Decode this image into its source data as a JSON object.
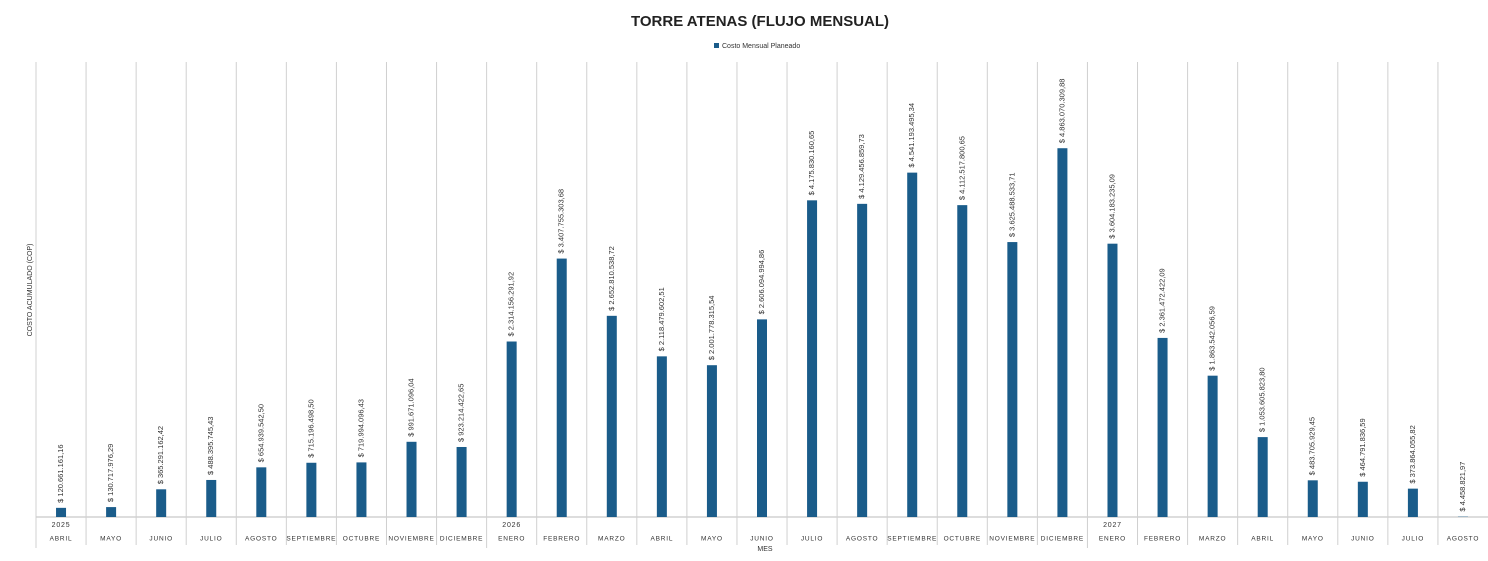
{
  "chart_data": {
    "type": "bar",
    "title": "TORRE ATENAS (FLUJO MENSUAL)",
    "x_label": "MES",
    "y_label": "COSTO ACUMULADO (COP)",
    "categories": [
      "ABRIL",
      "MAYO",
      "JUNIO",
      "JULIO",
      "AGOSTO",
      "SEPTIEMBRE",
      "OCTUBRE",
      "NOVIEMBRE",
      "DICIEMBRE",
      "ENERO",
      "FEBRERO",
      "MARZO",
      "ABRIL",
      "MAYO",
      "JUNIO",
      "JULIO",
      "AGOSTO",
      "SEPTIEMBRE",
      "OCTUBRE",
      "NOVIEMBRE",
      "DICIEMBRE",
      "ENERO",
      "FEBRERO",
      "MARZO",
      "ABRIL",
      "MAYO",
      "JUNIO",
      "JULIO",
      "AGOSTO"
    ],
    "years": [
      "2025",
      null,
      null,
      null,
      null,
      null,
      null,
      null,
      null,
      "2026",
      null,
      null,
      null,
      null,
      null,
      null,
      null,
      null,
      null,
      null,
      null,
      "2027",
      null,
      null,
      null,
      null,
      null,
      null,
      null
    ],
    "series": [
      {
        "name": "Costo Mensual Planeado",
        "color": "#1a5c8a",
        "values": [
          120661161.16,
          130717976.29,
          365291162.42,
          488395745.43,
          654939542.5,
          715196498.5,
          719994096.43,
          991671096.04,
          923214422.65,
          2314156291.92,
          3407755303.68,
          2652810538.72,
          2118479602.51,
          2001778315.54,
          2606094994.86,
          4175830160.65,
          4129456859.73,
          4541193495.34,
          4112517800.65,
          3625488533.71,
          4863070309.88,
          3604183235.09,
          2361472422.09,
          1863542056.59,
          1053605823.8,
          483705929.45,
          464791836.59,
          373864055.82,
          4458821.97
        ],
        "value_labels": [
          "$ 120.661.161,16",
          "$ 130.717.976,29",
          "$ 365.291.162,42",
          "$ 488.395.745,43",
          "$ 654.939.542,50",
          "$ 715.196.498,50",
          "$ 719.994.096,43",
          "$ 991.671.096,04",
          "$ 923.214.422,65",
          "$ 2.314.156.291,92",
          "$ 3.407.755.303,68",
          "$ 2.652.810.538,72",
          "$ 2.118.479.602,51",
          "$ 2.001.778.315,54",
          "$ 2.606.094.994,86",
          "$ 4.175.830.160,65",
          "$ 4.129.456.859,73",
          "$ 4.541.193.495,34",
          "$ 4.112.517.800,65",
          "$ 3.625.488.533,71",
          "$ 4.863.070.309,88",
          "$ 3.604.183.235,09",
          "$ 2.361.472.422,09",
          "$ 1.863.542.056,59",
          "$ 1.053.605.823,80",
          "$ 483.705.929,45",
          "$ 464.791.836,59",
          "$ 373.864.055,82",
          "$ 4.458.821,97"
        ]
      }
    ],
    "ylim": [
      0,
      6000000000
    ],
    "legend": "top"
  }
}
